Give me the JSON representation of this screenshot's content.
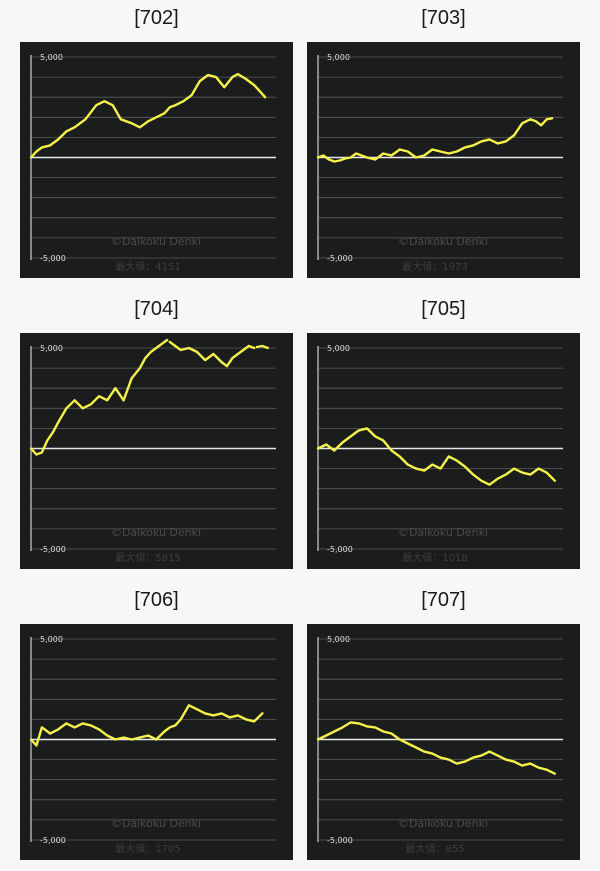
{
  "watermark": "©Daikoku Denki",
  "max_label": "最大値：",
  "colors": {
    "background": "#1b1d1c",
    "line": "#f4f24a",
    "grid": "#5b5d5c",
    "zero_line": "#e8e8e8",
    "axis": "#cfcfcf"
  },
  "chart_data": [
    {
      "type": "line",
      "title": "[702]",
      "max_value": "4151",
      "ylim": [
        -5000,
        5000
      ],
      "yticks": [
        "5,000",
        "-5,000"
      ],
      "grid": true,
      "x": [
        0,
        2,
        4,
        7,
        10,
        13,
        16,
        20,
        24,
        27,
        30,
        33,
        37,
        40,
        43,
        46,
        49,
        51,
        53,
        56,
        59,
        62,
        65,
        68,
        71,
        74,
        76,
        79,
        82,
        86
      ],
      "y": [
        0,
        300,
        500,
        600,
        900,
        1300,
        1500,
        1900,
        2600,
        2800,
        2600,
        1900,
        1700,
        1500,
        1800,
        2000,
        2200,
        2500,
        2600,
        2800,
        3100,
        3800,
        4100,
        4000,
        3500,
        4000,
        4150,
        3900,
        3600,
        3000
      ]
    },
    {
      "type": "line",
      "title": "[703]",
      "max_value": "1973",
      "ylim": [
        -5000,
        5000
      ],
      "yticks": [
        "5,000",
        "-5,000"
      ],
      "grid": true,
      "x": [
        0,
        2,
        4,
        6,
        8,
        10,
        12,
        14,
        16,
        18,
        21,
        24,
        27,
        30,
        33,
        36,
        39,
        42,
        45,
        48,
        51,
        54,
        57,
        60,
        63,
        66,
        69,
        72,
        75,
        78,
        80,
        82,
        84,
        86
      ],
      "y": [
        0,
        100,
        -100,
        -200,
        -150,
        -50,
        0,
        200,
        100,
        0,
        -100,
        200,
        100,
        400,
        300,
        0,
        100,
        400,
        300,
        200,
        300,
        500,
        600,
        800,
        900,
        700,
        800,
        1100,
        1700,
        1900,
        1800,
        1600,
        1900,
        1950
      ]
    },
    {
      "type": "line",
      "title": "[704]",
      "max_value": "5815",
      "ylim": [
        -5000,
        5000
      ],
      "yticks": [
        "5,000",
        "-5,000"
      ],
      "grid": true,
      "x": [
        0,
        2,
        4,
        6,
        8,
        10,
        13,
        16,
        19,
        22,
        25,
        28,
        31,
        34,
        37,
        40,
        42,
        44,
        46,
        48,
        50
      ],
      "y": [
        0,
        -300,
        -200,
        400,
        800,
        1300,
        2000,
        2400,
        2000,
        2200,
        2600,
        2400,
        3000,
        2400,
        3500,
        4000,
        4500,
        4800,
        5000,
        5200,
        5400
      ],
      "x2": [
        51,
        53,
        55,
        58,
        61,
        64,
        67,
        70,
        72,
        74,
        76,
        78,
        80,
        82
      ],
      "y2": [
        5300,
        5100,
        4900,
        5000,
        4800,
        4400,
        4700,
        4300,
        4100,
        4500,
        4700,
        4900,
        5100,
        5000
      ],
      "x3": [
        83,
        85,
        87
      ],
      "y3": [
        5050,
        5100,
        5000
      ]
    },
    {
      "type": "line",
      "title": "[705]",
      "max_value": "1018",
      "ylim": [
        -5000,
        5000
      ],
      "yticks": [
        "5,000",
        "-5,000"
      ],
      "grid": true,
      "x": [
        0,
        3,
        6,
        9,
        12,
        15,
        18,
        21,
        24,
        27,
        30,
        33,
        36,
        39,
        42,
        45,
        48,
        51,
        54,
        57,
        60,
        63,
        66,
        69,
        72,
        75,
        78,
        81,
        84,
        87
      ],
      "y": [
        0,
        200,
        -100,
        300,
        600,
        900,
        1000,
        600,
        400,
        -100,
        -400,
        -800,
        -1000,
        -1100,
        -800,
        -1000,
        -400,
        -600,
        -900,
        -1300,
        -1600,
        -1800,
        -1500,
        -1300,
        -1000,
        -1200,
        -1300,
        -1000,
        -1200,
        -1600
      ]
    },
    {
      "type": "line",
      "title": "[706]",
      "max_value": "1705",
      "ylim": [
        -5000,
        5000
      ],
      "yticks": [
        "5,000",
        "-5,000"
      ],
      "grid": true,
      "x": [
        0,
        2,
        4,
        7,
        10,
        13,
        16,
        19,
        22,
        25,
        28,
        31,
        34,
        37,
        40,
        43,
        46,
        49,
        51,
        53,
        55,
        58,
        61,
        64,
        67,
        70,
        73,
        76,
        79,
        82,
        85
      ],
      "y": [
        0,
        -300,
        600,
        300,
        500,
        800,
        600,
        800,
        700,
        500,
        200,
        0,
        100,
        0,
        100,
        200,
        0,
        400,
        600,
        700,
        1000,
        1700,
        1500,
        1300,
        1200,
        1300,
        1100,
        1200,
        1000,
        900,
        1300
      ]
    },
    {
      "type": "line",
      "title": "[707]",
      "max_value": "855",
      "ylim": [
        -5000,
        5000
      ],
      "yticks": [
        "5,000",
        "-5,000"
      ],
      "grid": true,
      "x": [
        0,
        3,
        6,
        9,
        12,
        15,
        18,
        21,
        24,
        27,
        30,
        33,
        36,
        39,
        42,
        45,
        48,
        51,
        54,
        57,
        60,
        63,
        66,
        69,
        72,
        75,
        78,
        81,
        84,
        87
      ],
      "y": [
        0,
        200,
        400,
        600,
        850,
        800,
        650,
        600,
        400,
        300,
        0,
        -200,
        -400,
        -600,
        -700,
        -900,
        -1000,
        -1200,
        -1100,
        -900,
        -800,
        -600,
        -800,
        -1000,
        -1100,
        -1300,
        -1200,
        -1400,
        -1500,
        -1700
      ]
    }
  ]
}
